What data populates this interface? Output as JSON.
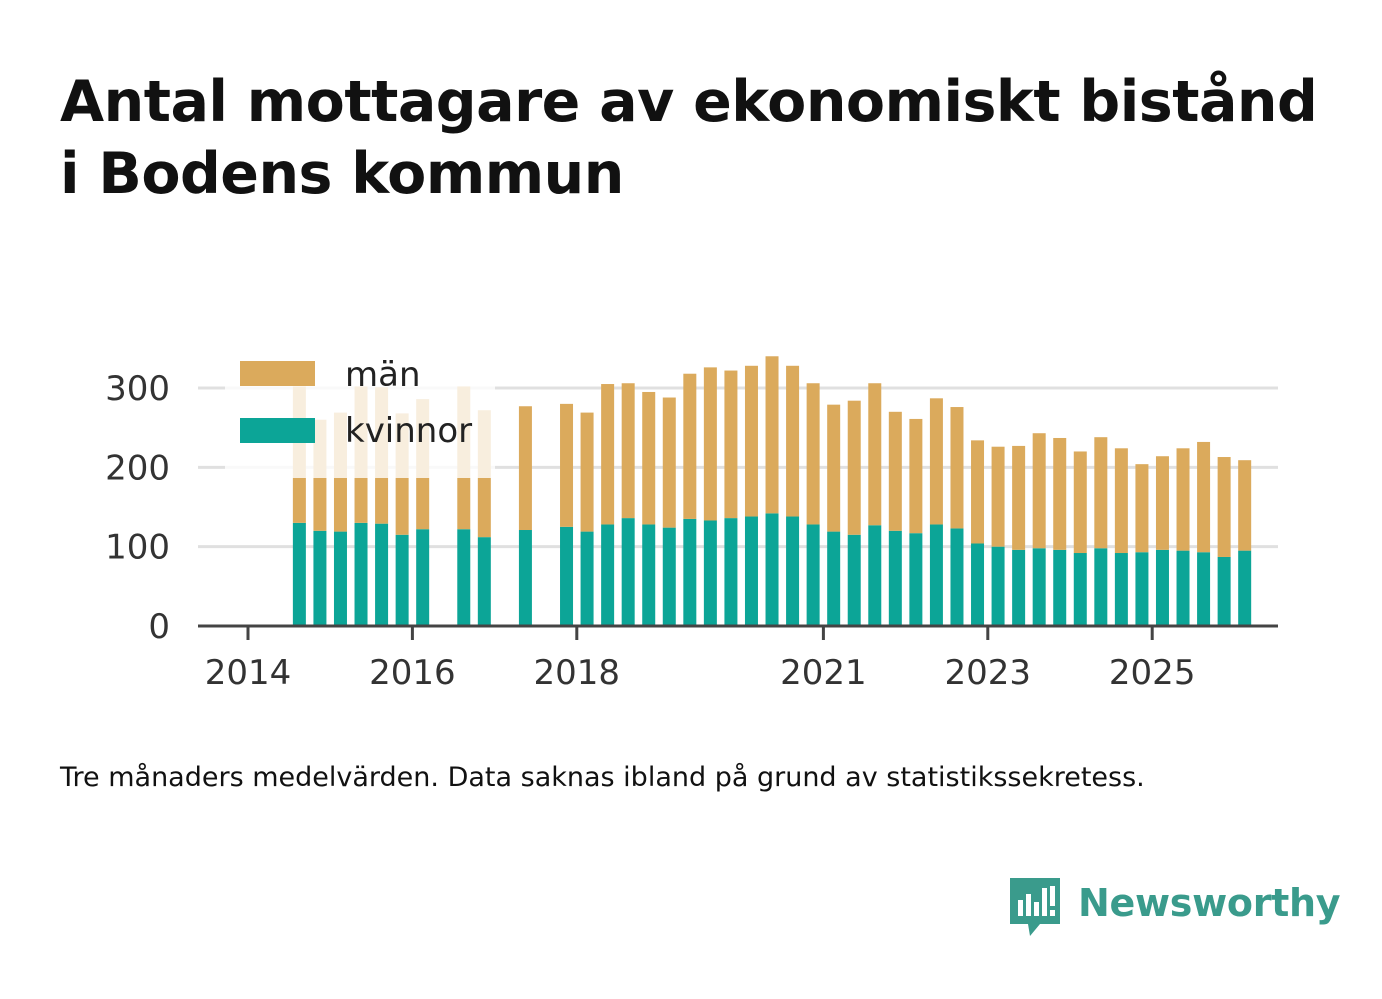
{
  "title": {
    "line1": "Antal mottagare av ekonomiskt bistånd",
    "line2": "i Bodens kommun"
  },
  "footnote": "Tre månaders medelvärden. Data saknas ibland på grund av statistikssekretess.",
  "brand": {
    "name": "Newsworthy",
    "color": "#3a9b8c"
  },
  "colors": {
    "men": "#dbaa5c",
    "women": "#0ca597",
    "axis": "#444444",
    "grid": "#e0e0e0"
  },
  "chart_data": {
    "type": "bar",
    "stacked": true,
    "title": "Antal mottagare av ekonomiskt bistånd i Bodens kommun",
    "xlabel": "",
    "ylabel": "",
    "ylim": [
      0,
      350
    ],
    "yticks": [
      0,
      100,
      200,
      300
    ],
    "x_tick_labels": [
      "2014",
      "2016",
      "2018",
      "2021",
      "2023",
      "2025"
    ],
    "legend_position": "top-left",
    "categories": [
      "2014-Q3",
      "2014-Q4",
      "2015-Q1",
      "2015-Q2",
      "2015-Q3",
      "2015-Q4",
      "2016-Q1",
      "2016-Q2",
      "2016-Q3",
      "2016-Q4",
      "2017-Q1",
      "2017-Q2",
      "2017-Q3",
      "2017-Q4",
      "2018-Q1",
      "2018-Q2",
      "2018-Q3",
      "2018-Q4",
      "2019-Q1",
      "2019-Q2",
      "2019-Q3",
      "2019-Q4",
      "2020-Q1",
      "2020-Q2",
      "2020-Q3",
      "2020-Q4",
      "2021-Q1",
      "2021-Q2",
      "2021-Q3",
      "2021-Q4",
      "2022-Q1",
      "2022-Q2",
      "2022-Q3",
      "2022-Q4",
      "2023-Q1",
      "2023-Q2",
      "2023-Q3",
      "2023-Q4",
      "2024-Q1",
      "2024-Q2",
      "2024-Q3",
      "2024-Q4",
      "2025-Q1",
      "2025-Q2",
      "2025-Q3",
      "2025-Q4",
      "2026-Q1"
    ],
    "series": [
      {
        "name": "kvinnor",
        "values": [
          130,
          120,
          119,
          130,
          129,
          115,
          122,
          null,
          122,
          112,
          null,
          121,
          null,
          125,
          119,
          128,
          136,
          128,
          124,
          135,
          133,
          136,
          138,
          142,
          138,
          128,
          119,
          115,
          127,
          120,
          117,
          128,
          123,
          104,
          100,
          96,
          98,
          96,
          92,
          98,
          92,
          93,
          96,
          95,
          93,
          87,
          95
        ]
      },
      {
        "name": "män",
        "values": [
          172,
          140,
          150,
          172,
          172,
          153,
          164,
          null,
          180,
          160,
          null,
          156,
          null,
          155,
          150,
          177,
          170,
          167,
          164,
          183,
          193,
          186,
          190,
          198,
          190,
          178,
          160,
          169,
          179,
          150,
          144,
          159,
          153,
          130,
          126,
          131,
          145,
          141,
          128,
          140,
          132,
          111,
          118,
          129,
          139,
          126,
          114
        ]
      }
    ]
  }
}
